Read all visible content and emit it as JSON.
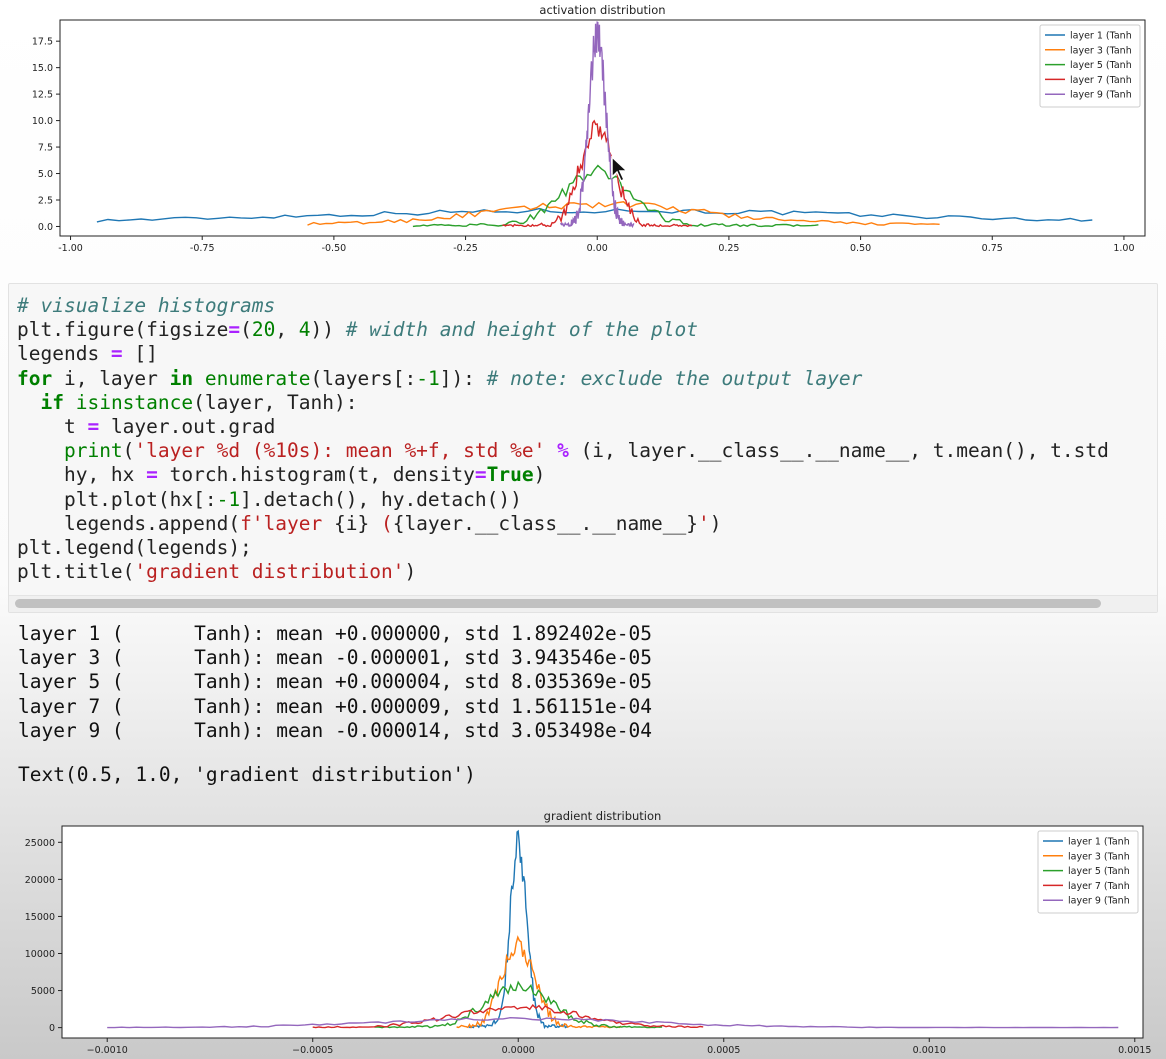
{
  "code_cell": {
    "lines": [
      {
        "t": "# visualize histograms",
        "c": "cm"
      },
      [
        {
          "t": "plt.figure(figsize"
        },
        {
          "t": "=",
          "c": "op"
        },
        {
          "t": "("
        },
        {
          "t": "20",
          "c": "nm"
        },
        {
          "t": ", "
        },
        {
          "t": "4",
          "c": "nm"
        },
        {
          "t": ")) "
        },
        {
          "t": "# width and height of the plot",
          "c": "cm"
        }
      ],
      [
        {
          "t": "legends "
        },
        {
          "t": "=",
          "c": "op"
        },
        {
          "t": " []"
        }
      ],
      [
        {
          "t": "for",
          "c": "kw"
        },
        {
          "t": " i, layer "
        },
        {
          "t": "in",
          "c": "kw"
        },
        {
          "t": " "
        },
        {
          "t": "enumerate",
          "c": "bi"
        },
        {
          "t": "(layers[:"
        },
        {
          "t": "-1",
          "c": "nm"
        },
        {
          "t": "]): "
        },
        {
          "t": "# note: exclude the output layer",
          "c": "cm"
        }
      ],
      [
        {
          "t": "  "
        },
        {
          "t": "if",
          "c": "kw"
        },
        {
          "t": " "
        },
        {
          "t": "isinstance",
          "c": "bi"
        },
        {
          "t": "(layer, Tanh):"
        }
      ],
      [
        {
          "t": "    t "
        },
        {
          "t": "=",
          "c": "op"
        },
        {
          "t": " layer.out.grad"
        }
      ],
      [
        {
          "t": "    "
        },
        {
          "t": "print",
          "c": "bi"
        },
        {
          "t": "("
        },
        {
          "t": "'layer %d (%10s): mean %+f, std %e'",
          "c": "st"
        },
        {
          "t": " "
        },
        {
          "t": "%",
          "c": "op"
        },
        {
          "t": " (i, layer.__class__.__name__, t.mean(), t.std"
        }
      ],
      [
        {
          "t": "    hy, hx "
        },
        {
          "t": "=",
          "c": "op"
        },
        {
          "t": " torch.histogram(t, density"
        },
        {
          "t": "=",
          "c": "op"
        },
        {
          "t": "True",
          "c": "kw"
        },
        {
          "t": ")"
        }
      ],
      [
        {
          "t": "    plt.plot(hx[:"
        },
        {
          "t": "-1",
          "c": "nm"
        },
        {
          "t": "].detach(), hy.detach())"
        }
      ],
      [
        {
          "t": "    legends.append("
        },
        {
          "t": "f'layer ",
          "c": "st"
        },
        {
          "t": "{i}"
        },
        {
          "t": " (",
          "c": "st"
        },
        {
          "t": "{layer.__class__.__name__}"
        },
        {
          "t": "'",
          "c": "st"
        },
        {
          "t": ")"
        }
      ],
      [
        {
          "t": "plt.legend(legends);"
        }
      ],
      [
        {
          "t": "plt.title("
        },
        {
          "t": "'gradient distribution'",
          "c": "st"
        },
        {
          "t": ")"
        }
      ]
    ]
  },
  "output": {
    "stdout": [
      "layer 1 (      Tanh): mean +0.000000, std 1.892402e-05",
      "layer 3 (      Tanh): mean -0.000001, std 3.943546e-05",
      "layer 5 (      Tanh): mean +0.000004, std 8.035369e-05",
      "layer 7 (      Tanh): mean +0.000009, std 1.561151e-04",
      "layer 9 (      Tanh): mean -0.000014, std 3.053498e-04"
    ],
    "result": "Text(0.5, 1.0, 'gradient distribution')"
  },
  "chart_data": [
    {
      "type": "line",
      "title": "activation distribution",
      "xlim": [
        -1.02,
        1.04
      ],
      "ylim": [
        -0.9,
        19.5
      ],
      "xticks": [
        "-1.00",
        "-0.75",
        "-0.50",
        "-0.25",
        "0.00",
        "0.25",
        "0.50",
        "0.75",
        "1.00"
      ],
      "xtick_values": [
        -1.0,
        -0.75,
        -0.5,
        -0.25,
        0.0,
        0.25,
        0.5,
        0.75,
        1.0
      ],
      "yticks": [
        "0.0",
        "2.5",
        "5.0",
        "7.5",
        "10.0",
        "12.5",
        "15.0",
        "17.5"
      ],
      "ytick_values": [
        0,
        2.5,
        5,
        7.5,
        10,
        12.5,
        15,
        17.5
      ],
      "legend_position": "top-right",
      "series": [
        {
          "name": "layer 1 (Tanh",
          "color": "#1f77b4",
          "range": [
            -0.95,
            0.94
          ],
          "peak": 1.2,
          "width": 0.55,
          "base": 0.3,
          "noise": 0.2
        },
        {
          "name": "layer 3 (Tanh",
          "color": "#ff7f0e",
          "range": [
            -0.55,
            0.65
          ],
          "peak": 1.9,
          "width": 0.2,
          "base": 0.2,
          "noise": 0.3
        },
        {
          "name": "layer 5 (Tanh",
          "color": "#2ca02c",
          "range": [
            -0.35,
            0.42
          ],
          "peak": 5.0,
          "width": 0.065,
          "base": 0.1,
          "noise": 0.6
        },
        {
          "name": "layer 7 (Tanh",
          "color": "#d62728",
          "range": [
            -0.18,
            0.18
          ],
          "peak": 9.5,
          "width": 0.032,
          "base": 0.0,
          "noise": 1.0
        },
        {
          "name": "layer 9 (Tanh",
          "color": "#9467bd",
          "range": [
            -0.07,
            0.07
          ],
          "peak": 18.0,
          "width": 0.016,
          "base": 0.0,
          "noise": 1.6
        }
      ]
    },
    {
      "type": "line",
      "title": "gradient distribution",
      "xlim": [
        -0.00111,
        0.00152
      ],
      "ylim": [
        -1400,
        27200
      ],
      "xticks": [
        "−0.0010",
        "−0.0005",
        "0.0000",
        "0.0005",
        "0.0010",
        "0.0015"
      ],
      "xtick_values": [
        -0.001,
        -0.0005,
        0.0,
        0.0005,
        0.001,
        0.0015
      ],
      "yticks": [
        "0",
        "5000",
        "10000",
        "15000",
        "20000",
        "25000"
      ],
      "ytick_values": [
        0,
        5000,
        10000,
        15000,
        20000,
        25000
      ],
      "legend_position": "top-right",
      "series": [
        {
          "name": "layer 1 (Tanh",
          "color": "#1f77b4",
          "range": [
            -0.00012,
            0.00012
          ],
          "peak": 25000,
          "width": 2e-05,
          "base": 0,
          "noise": 2000
        },
        {
          "name": "layer 3 (Tanh",
          "color": "#ff7f0e",
          "range": [
            -0.00015,
            0.00025
          ],
          "peak": 11000,
          "width": 4e-05,
          "base": 0,
          "noise": 1100
        },
        {
          "name": "layer 5 (Tanh",
          "color": "#2ca02c",
          "range": [
            -0.00035,
            0.00035
          ],
          "peak": 5500,
          "width": 8e-05,
          "base": 0,
          "noise": 600
        },
        {
          "name": "layer 7 (Tanh",
          "color": "#d62728",
          "range": [
            -0.0005,
            0.00045
          ],
          "peak": 2800,
          "width": 0.00015,
          "base": 0,
          "noise": 350
        },
        {
          "name": "layer 9 (Tanh",
          "color": "#9467bd",
          "range": [
            -0.001,
            0.00146
          ],
          "peak": 1200,
          "width": 0.00032,
          "base": 0,
          "noise": 150
        }
      ]
    }
  ]
}
